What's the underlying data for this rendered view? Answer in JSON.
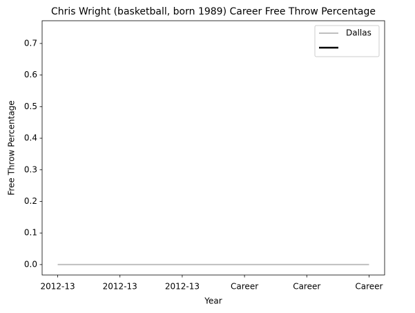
{
  "chart_data": {
    "type": "line",
    "title": "Chris Wright (basketball, born 1989) Career Free Throw Percentage",
    "x_label": "Year",
    "y_label": "Free Throw Percentage",
    "categories": [
      "2012-13",
      "2012-13",
      "2012-13",
      "Career",
      "Career",
      "Career"
    ],
    "series": [
      {
        "name": "Dallas",
        "color": "#bfbfbf",
        "values": [
          0,
          0,
          0,
          0,
          0,
          0
        ]
      }
    ],
    "xlim": [
      -0.25,
      5.25
    ],
    "ylim": [
      -0.033,
      0.772
    ],
    "yticks": [
      {
        "value": 0,
        "label": "0.0"
      },
      0.1,
      0.2,
      0.3,
      0.4,
      0.5,
      0.6,
      0.7
    ],
    "legend": "upper right",
    "grid": false
  }
}
